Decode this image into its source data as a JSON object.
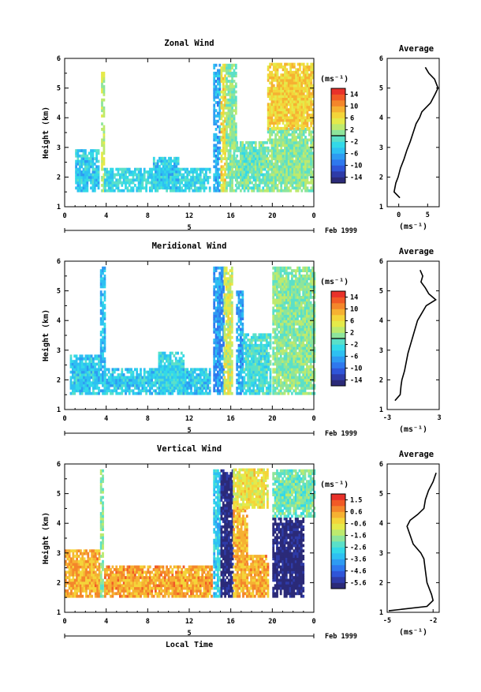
{
  "figure": {
    "time_axis_label": "Local Time",
    "profile_title": "Average",
    "height_label": "Height (km)",
    "date_label": "Feb 1999",
    "day_label": "5"
  },
  "colors": {
    "scale": [
      "#2b2a78",
      "#2e3ba8",
      "#2f55d8",
      "#2f78ee",
      "#2e9bf2",
      "#2ec0f2",
      "#33d9e8",
      "#5ae0c9",
      "#8ee59b",
      "#bdea6e",
      "#e5ea4a",
      "#f4d53a",
      "#f6b132",
      "#f4862b",
      "#f15a26",
      "#e8312a"
    ]
  },
  "chart_data": [
    {
      "type": "heatmap",
      "title": "Zonal Wind",
      "ylabel": "Height (km)",
      "xlabel": "",
      "x_range": [
        0,
        24
      ],
      "y_range": [
        1,
        6
      ],
      "x_ticks": [
        "0",
        "4",
        "8",
        "12",
        "16",
        "20",
        "0"
      ],
      "y_ticks": [
        "1",
        "2",
        "3",
        "4",
        "5",
        "6"
      ],
      "colorbar": {
        "unit": "(ms⁻¹)",
        "range": [
          -16,
          16
        ],
        "tick_labels": [
          "14",
          "10",
          "6",
          "2",
          "-2",
          "-6",
          "-10",
          "-14"
        ],
        "zero_line": true
      },
      "regimes": [
        {
          "t0": 1.0,
          "t1": 3.2,
          "h0": 1.5,
          "h1": 2.9,
          "v": -4
        },
        {
          "t0": 3.5,
          "t1": 3.8,
          "h0": 1.5,
          "h1": 5.5,
          "v": 3
        },
        {
          "t0": 3.8,
          "t1": 14.0,
          "h0": 1.5,
          "h1": 2.3,
          "v": -3
        },
        {
          "t0": 8.5,
          "t1": 11.0,
          "h0": 1.6,
          "h1": 2.6,
          "v": -4
        },
        {
          "t0": 14.3,
          "t1": 14.9,
          "h0": 1.5,
          "h1": 5.8,
          "v": -6
        },
        {
          "t0": 15.0,
          "t1": 15.5,
          "h0": 1.5,
          "h1": 5.8,
          "v": 6
        },
        {
          "t0": 15.5,
          "t1": 16.5,
          "h0": 1.5,
          "h1": 5.8,
          "v": 1
        },
        {
          "t0": 16.5,
          "t1": 19.5,
          "h0": 1.5,
          "h1": 3.2,
          "v": 0
        },
        {
          "t0": 19.5,
          "t1": 24.0,
          "h0": 1.5,
          "h1": 3.6,
          "v": 1
        },
        {
          "t0": 19.5,
          "t1": 24.0,
          "h0": 3.6,
          "h1": 5.8,
          "v": 7
        }
      ],
      "profile": {
        "xlabel": "(ms⁻¹)",
        "x_range": [
          -2,
          7
        ],
        "x_ticks": [
          "0",
          "5"
        ],
        "heights": [
          1.3,
          1.5,
          1.8,
          2.0,
          2.3,
          2.6,
          2.9,
          3.2,
          3.5,
          3.8,
          4.0,
          4.2,
          4.5,
          4.8,
          5.0,
          5.3,
          5.5,
          5.7
        ],
        "values": [
          0.2,
          -0.8,
          -0.5,
          -0.1,
          0.3,
          0.9,
          1.4,
          2.0,
          2.5,
          3.0,
          3.6,
          4.0,
          5.5,
          6.3,
          6.8,
          6.2,
          5.2,
          4.6
        ]
      }
    },
    {
      "type": "heatmap",
      "title": "Meridional Wind",
      "ylabel": "Height (km)",
      "xlabel": "",
      "x_range": [
        0,
        24
      ],
      "y_range": [
        1,
        6
      ],
      "x_ticks": [
        "0",
        "4",
        "8",
        "12",
        "16",
        "20",
        "0"
      ],
      "y_ticks": [
        "1",
        "2",
        "3",
        "4",
        "5",
        "6"
      ],
      "colorbar": {
        "unit": "(ms⁻¹)",
        "range": [
          -16,
          16
        ],
        "tick_labels": [
          "14",
          "10",
          "6",
          "2",
          "-2",
          "-6",
          "-10",
          "-14"
        ],
        "zero_line": true
      },
      "regimes": [
        {
          "t0": 0.5,
          "t1": 3.3,
          "h0": 1.5,
          "h1": 2.8,
          "v": -4
        },
        {
          "t0": 3.4,
          "t1": 3.8,
          "h0": 1.5,
          "h1": 5.8,
          "v": -5
        },
        {
          "t0": 3.8,
          "t1": 14.0,
          "h0": 1.5,
          "h1": 2.4,
          "v": -4
        },
        {
          "t0": 9.0,
          "t1": 11.5,
          "h0": 1.6,
          "h1": 2.9,
          "v": -3
        },
        {
          "t0": 14.3,
          "t1": 15.3,
          "h0": 1.5,
          "h1": 5.8,
          "v": -7
        },
        {
          "t0": 15.3,
          "t1": 16.2,
          "h0": 1.5,
          "h1": 5.8,
          "v": 4
        },
        {
          "t0": 16.5,
          "t1": 17.2,
          "h0": 1.5,
          "h1": 5.0,
          "v": -6
        },
        {
          "t0": 17.2,
          "t1": 19.8,
          "h0": 1.5,
          "h1": 3.5,
          "v": -2
        },
        {
          "t0": 20.0,
          "t1": 24.0,
          "h0": 1.5,
          "h1": 5.8,
          "v": 1
        }
      ],
      "profile": {
        "xlabel": "(ms⁻¹)",
        "x_range": [
          -3,
          3
        ],
        "x_ticks": [
          "-3",
          "3"
        ],
        "heights": [
          1.3,
          1.5,
          1.8,
          2.0,
          2.3,
          2.6,
          2.9,
          3.2,
          3.5,
          3.8,
          4.0,
          4.2,
          4.5,
          4.7,
          4.9,
          5.1,
          5.3,
          5.5,
          5.7
        ],
        "values": [
          -2.1,
          -1.5,
          -1.4,
          -1.3,
          -1.0,
          -0.8,
          -0.6,
          -0.3,
          0.0,
          0.3,
          0.5,
          0.9,
          1.5,
          2.6,
          1.8,
          1.4,
          0.9,
          1.1,
          0.8
        ]
      }
    },
    {
      "type": "heatmap",
      "title": "Vertical Wind",
      "ylabel": "Height (km)",
      "xlabel": "Local Time",
      "x_range": [
        0,
        24
      ],
      "y_range": [
        1,
        6
      ],
      "x_ticks": [
        "0",
        "4",
        "8",
        "12",
        "16",
        "20",
        "0"
      ],
      "y_ticks": [
        "1",
        "2",
        "3",
        "4",
        "5",
        "6"
      ],
      "colorbar": {
        "unit": "(ms⁻¹)",
        "range": [
          -6,
          2
        ],
        "tick_labels": [
          "1.5",
          "0.6",
          "-0.6",
          "-1.6",
          "-2.6",
          "-3.6",
          "-4.6",
          "-5.6"
        ],
        "zero_line": false
      },
      "regimes": [
        {
          "t0": 0.0,
          "t1": 3.3,
          "h0": 1.5,
          "h1": 3.1,
          "v": 0.3
        },
        {
          "t0": 3.4,
          "t1": 3.7,
          "h0": 1.5,
          "h1": 5.8,
          "v": -1.8
        },
        {
          "t0": 3.8,
          "t1": 14.2,
          "h0": 1.5,
          "h1": 2.5,
          "v": 0.4
        },
        {
          "t0": 14.3,
          "t1": 15.0,
          "h0": 1.5,
          "h1": 5.8,
          "v": -3.0
        },
        {
          "t0": 15.0,
          "t1": 16.2,
          "h0": 1.5,
          "h1": 5.8,
          "v": -5.8
        },
        {
          "t0": 16.2,
          "t1": 17.5,
          "h0": 1.5,
          "h1": 4.5,
          "v": 0.2
        },
        {
          "t0": 16.2,
          "t1": 19.5,
          "h0": 4.5,
          "h1": 5.8,
          "v": -0.6
        },
        {
          "t0": 17.5,
          "t1": 19.6,
          "h0": 1.5,
          "h1": 2.9,
          "v": 0.3
        },
        {
          "t0": 20.0,
          "t1": 23.0,
          "h0": 1.5,
          "h1": 4.2,
          "v": -5.8
        },
        {
          "t0": 20.0,
          "t1": 24.0,
          "h0": 4.2,
          "h1": 5.8,
          "v": -2.0
        }
      ],
      "profile": {
        "xlabel": "(ms⁻¹)",
        "x_range": [
          -5,
          -1.6
        ],
        "x_ticks": [
          "-5",
          "-2"
        ],
        "heights": [
          1.05,
          1.2,
          1.4,
          1.6,
          2.0,
          2.4,
          2.8,
          3.0,
          3.3,
          3.6,
          3.9,
          4.1,
          4.3,
          4.5,
          4.8,
          5.1,
          5.4,
          5.7
        ],
        "values": [
          -4.9,
          -2.4,
          -2.0,
          -2.1,
          -2.4,
          -2.5,
          -2.6,
          -2.8,
          -3.3,
          -3.5,
          -3.7,
          -3.5,
          -3.0,
          -2.6,
          -2.5,
          -2.3,
          -2.0,
          -1.8
        ]
      }
    }
  ]
}
